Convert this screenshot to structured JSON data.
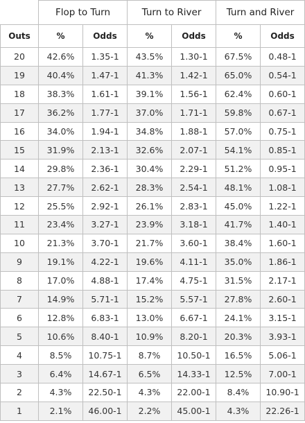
{
  "header": {
    "groups": [
      "Flop to Turn",
      "Turn to River",
      "Turn and River"
    ],
    "outs_label": "Outs",
    "pct_label": "%",
    "odds_label": "Odds"
  },
  "rows": [
    {
      "outs": "20",
      "ft_pct": "42.6%",
      "ft_odds": "1.35-1",
      "tr_pct": "43.5%",
      "tr_odds": "1.30-1",
      "tnr_pct": "67.5%",
      "tnr_odds": "0.48-1"
    },
    {
      "outs": "19",
      "ft_pct": "40.4%",
      "ft_odds": "1.47-1",
      "tr_pct": "41.3%",
      "tr_odds": "1.42-1",
      "tnr_pct": "65.0%",
      "tnr_odds": "0.54-1"
    },
    {
      "outs": "18",
      "ft_pct": "38.3%",
      "ft_odds": "1.61-1",
      "tr_pct": "39.1%",
      "tr_odds": "1.56-1",
      "tnr_pct": "62.4%",
      "tnr_odds": "0.60-1"
    },
    {
      "outs": "17",
      "ft_pct": "36.2%",
      "ft_odds": "1.77-1",
      "tr_pct": "37.0%",
      "tr_odds": "1.71-1",
      "tnr_pct": "59.8%",
      "tnr_odds": "0.67-1"
    },
    {
      "outs": "16",
      "ft_pct": "34.0%",
      "ft_odds": "1.94-1",
      "tr_pct": "34.8%",
      "tr_odds": "1.88-1",
      "tnr_pct": "57.0%",
      "tnr_odds": "0.75-1"
    },
    {
      "outs": "15",
      "ft_pct": "31.9%",
      "ft_odds": "2.13-1",
      "tr_pct": "32.6%",
      "tr_odds": "2.07-1",
      "tnr_pct": "54.1%",
      "tnr_odds": "0.85-1"
    },
    {
      "outs": "14",
      "ft_pct": "29.8%",
      "ft_odds": "2.36-1",
      "tr_pct": "30.4%",
      "tr_odds": "2.29-1",
      "tnr_pct": "51.2%",
      "tnr_odds": "0.95-1"
    },
    {
      "outs": "13",
      "ft_pct": "27.7%",
      "ft_odds": "2.62-1",
      "tr_pct": "28.3%",
      "tr_odds": "2.54-1",
      "tnr_pct": "48.1%",
      "tnr_odds": "1.08-1"
    },
    {
      "outs": "12",
      "ft_pct": "25.5%",
      "ft_odds": "2.92-1",
      "tr_pct": "26.1%",
      "tr_odds": "2.83-1",
      "tnr_pct": "45.0%",
      "tnr_odds": "1.22-1"
    },
    {
      "outs": "11",
      "ft_pct": "23.4%",
      "ft_odds": "3.27-1",
      "tr_pct": "23.9%",
      "tr_odds": "3.18-1",
      "tnr_pct": "41.7%",
      "tnr_odds": "1.40-1"
    },
    {
      "outs": "10",
      "ft_pct": "21.3%",
      "ft_odds": "3.70-1",
      "tr_pct": "21.7%",
      "tr_odds": "3.60-1",
      "tnr_pct": "38.4%",
      "tnr_odds": "1.60-1"
    },
    {
      "outs": "9",
      "ft_pct": "19.1%",
      "ft_odds": "4.22-1",
      "tr_pct": "19.6%",
      "tr_odds": "4.11-1",
      "tnr_pct": "35.0%",
      "tnr_odds": "1.86-1"
    },
    {
      "outs": "8",
      "ft_pct": "17.0%",
      "ft_odds": "4.88-1",
      "tr_pct": "17.4%",
      "tr_odds": "4.75-1",
      "tnr_pct": "31.5%",
      "tnr_odds": "2.17-1"
    },
    {
      "outs": "7",
      "ft_pct": "14.9%",
      "ft_odds": "5.71-1",
      "tr_pct": "15.2%",
      "tr_odds": "5.57-1",
      "tnr_pct": "27.8%",
      "tnr_odds": "2.60-1"
    },
    {
      "outs": "6",
      "ft_pct": "12.8%",
      "ft_odds": "6.83-1",
      "tr_pct": "13.0%",
      "tr_odds": "6.67-1",
      "tnr_pct": "24.1%",
      "tnr_odds": "3.15-1"
    },
    {
      "outs": "5",
      "ft_pct": "10.6%",
      "ft_odds": "8.40-1",
      "tr_pct": "10.9%",
      "tr_odds": "8.20-1",
      "tnr_pct": "20.3%",
      "tnr_odds": "3.93-1"
    },
    {
      "outs": "4",
      "ft_pct": "8.5%",
      "ft_odds": "10.75-1",
      "tr_pct": "8.7%",
      "tr_odds": "10.50-1",
      "tnr_pct": "16.5%",
      "tnr_odds": "5.06-1"
    },
    {
      "outs": "3",
      "ft_pct": "6.4%",
      "ft_odds": "14.67-1",
      "tr_pct": "6.5%",
      "tr_odds": "14.33-1",
      "tnr_pct": "12.5%",
      "tnr_odds": "7.00-1"
    },
    {
      "outs": "2",
      "ft_pct": "4.3%",
      "ft_odds": "22.50-1",
      "tr_pct": "4.3%",
      "tr_odds": "22.00-1",
      "tnr_pct": "8.4%",
      "tnr_odds": "10.90-1"
    },
    {
      "outs": "1",
      "ft_pct": "2.1%",
      "ft_odds": "46.00-1",
      "tr_pct": "2.2%",
      "tr_odds": "45.00-1",
      "tnr_pct": "4.3%",
      "tnr_odds": "22.26-1"
    }
  ]
}
